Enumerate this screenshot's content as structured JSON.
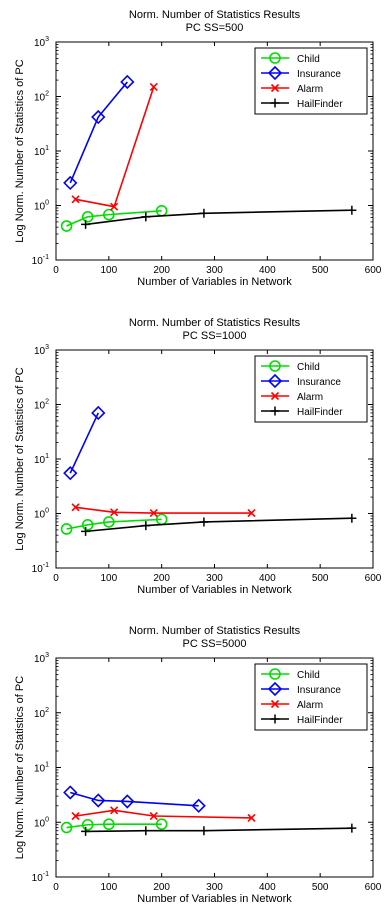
{
  "chart_data": [
    {
      "type": "line",
      "title": "Norm. Number of Statistics Results",
      "subtitle": "PC SS=500",
      "xlabel": "Number of Variables in Network",
      "ylabel": "Log Norm. Number of Statistics of PC",
      "xlim": [
        0,
        600
      ],
      "ylim": [
        0.1,
        1000
      ],
      "yscale": "log",
      "xticks": [
        "0",
        "100",
        "200",
        "300",
        "400",
        "500",
        "600"
      ],
      "yticks": [
        "10",
        "10",
        "10",
        "10",
        "10"
      ],
      "ytick_exponents": [
        "-1",
        "0",
        "1",
        "2",
        "3"
      ],
      "legend_position": "top-right",
      "grid": false,
      "series": [
        {
          "name": "Child",
          "color": "#00dd00",
          "marker": "circle",
          "x": [
            20,
            60,
            100,
            200
          ],
          "y": [
            0.42,
            0.62,
            0.68,
            0.8
          ]
        },
        {
          "name": "Insurance",
          "color": "#0000ff",
          "marker": "diamond",
          "x": [
            27,
            80,
            135
          ],
          "y": [
            2.6,
            42,
            185
          ]
        },
        {
          "name": "Alarm",
          "color": "#ff0000",
          "marker": "x",
          "x": [
            37,
            110,
            185
          ],
          "y": [
            1.3,
            0.95,
            150
          ]
        },
        {
          "name": "HailFinder",
          "color": "#000000",
          "marker": "plus",
          "x": [
            56,
            170,
            280,
            560
          ],
          "y": [
            0.45,
            0.62,
            0.72,
            0.82
          ]
        }
      ]
    },
    {
      "type": "line",
      "title": "Norm. Number of Statistics Results",
      "subtitle": "PC SS=1000",
      "xlabel": "Number of Variables in Network",
      "ylabel": "Log Norm. Number of Statistics of PC",
      "xlim": [
        0,
        600
      ],
      "ylim": [
        0.1,
        1000
      ],
      "yscale": "log",
      "xticks": [
        "0",
        "100",
        "200",
        "300",
        "400",
        "500",
        "600"
      ],
      "yticks": [
        "10",
        "10",
        "10",
        "10",
        "10"
      ],
      "ytick_exponents": [
        "-1",
        "0",
        "1",
        "2",
        "3"
      ],
      "legend_position": "top-right",
      "grid": false,
      "series": [
        {
          "name": "Child",
          "color": "#00dd00",
          "marker": "circle",
          "x": [
            20,
            60,
            100,
            200
          ],
          "y": [
            0.52,
            0.62,
            0.7,
            0.78
          ]
        },
        {
          "name": "Insurance",
          "color": "#0000ff",
          "marker": "diamond",
          "x": [
            27,
            80
          ],
          "y": [
            5.5,
            70
          ]
        },
        {
          "name": "Alarm",
          "color": "#ff0000",
          "marker": "x",
          "x": [
            37,
            110,
            185,
            370
          ],
          "y": [
            1.3,
            1.05,
            1.02,
            1.02
          ]
        },
        {
          "name": "HailFinder",
          "color": "#000000",
          "marker": "plus",
          "x": [
            56,
            170,
            280,
            560
          ],
          "y": [
            0.47,
            0.6,
            0.7,
            0.82
          ]
        }
      ]
    },
    {
      "type": "line",
      "title": "Norm. Number of Statistics Results",
      "subtitle": "PC SS=5000",
      "xlabel": "Number of Variables in Network",
      "ylabel": "Log Norm. Number of Statistics of PC",
      "xlim": [
        0,
        600
      ],
      "ylim": [
        0.1,
        1000
      ],
      "yscale": "log",
      "xticks": [
        "0",
        "100",
        "200",
        "300",
        "400",
        "500",
        "600"
      ],
      "yticks": [
        "10",
        "10",
        "10",
        "10",
        "10"
      ],
      "ytick_exponents": [
        "-1",
        "0",
        "1",
        "2",
        "3"
      ],
      "legend_position": "top-right",
      "grid": false,
      "series": [
        {
          "name": "Child",
          "color": "#00dd00",
          "marker": "circle",
          "x": [
            20,
            60,
            100,
            200
          ],
          "y": [
            0.8,
            0.9,
            0.92,
            0.92
          ]
        },
        {
          "name": "Insurance",
          "color": "#0000ff",
          "marker": "diamond",
          "x": [
            27,
            80,
            135,
            270
          ],
          "y": [
            3.5,
            2.5,
            2.4,
            2.0
          ]
        },
        {
          "name": "Alarm",
          "color": "#ff0000",
          "marker": "x",
          "x": [
            37,
            110,
            185,
            370
          ],
          "y": [
            1.3,
            1.65,
            1.3,
            1.2
          ]
        },
        {
          "name": "HailFinder",
          "color": "#000000",
          "marker": "plus",
          "x": [
            56,
            170,
            280,
            560
          ],
          "y": [
            0.68,
            0.7,
            0.7,
            0.78
          ]
        }
      ]
    }
  ]
}
